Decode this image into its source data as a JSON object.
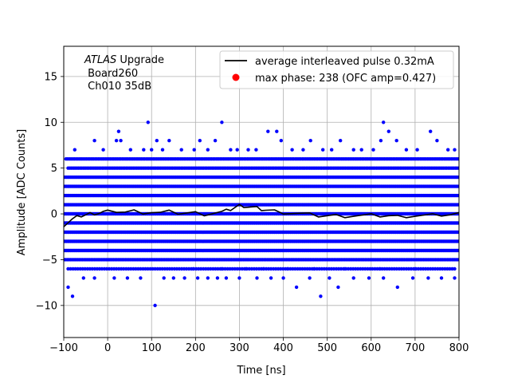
{
  "chart_data": {
    "type": "scatter",
    "annotation": {
      "italic": "ATLAS",
      "line1_rest": " Upgrade",
      "line2": " Board260",
      "line3": " Ch010 35dB"
    },
    "xlabel": "Time [ns]",
    "ylabel": "Amplitude [ADC Counts]",
    "xlim": [
      -100,
      800
    ],
    "ylim": [
      -13.5,
      18.3
    ],
    "xticks": [
      -100,
      0,
      100,
      200,
      300,
      400,
      500,
      600,
      700,
      800
    ],
    "yticks": [
      -10,
      -5,
      0,
      5,
      10,
      15
    ],
    "grid": true,
    "legend": {
      "placement": "top-right",
      "entries": [
        {
          "label": "average interleaved pulse 0.32mA",
          "kind": "line",
          "color": "#000000"
        },
        {
          "label": "max phase: 238 (OFC amp=0.427)",
          "kind": "marker",
          "color": "#ff0000"
        }
      ]
    },
    "series": [
      {
        "kind": "scatter",
        "color": "#0000ff",
        "bands": [
          {
            "y": 6,
            "x": [
              -95,
              800
            ],
            "step": 3.9
          },
          {
            "y": 5,
            "x": [
              -90,
              800
            ],
            "step": 3.9
          },
          {
            "y": 4,
            "x": [
              -100,
              800
            ],
            "step": 3.0
          },
          {
            "y": 3,
            "x": [
              -100,
              800
            ],
            "step": 3.0
          },
          {
            "y": 2,
            "x": [
              -100,
              800
            ],
            "step": 3.0
          },
          {
            "y": 1,
            "x": [
              -100,
              800
            ],
            "step": 3.0
          },
          {
            "y": 0,
            "x": [
              -100,
              800
            ],
            "step": 3.0
          },
          {
            "y": -1,
            "x": [
              -100,
              800
            ],
            "step": 3.0
          },
          {
            "y": -2,
            "x": [
              -100,
              800
            ],
            "step": 3.0
          },
          {
            "y": -3,
            "x": [
              -100,
              800
            ],
            "step": 3.0
          },
          {
            "y": -4,
            "x": [
              -100,
              800
            ],
            "step": 3.0
          },
          {
            "y": -5,
            "x": [
              -100,
              800
            ],
            "step": 3.9
          },
          {
            "y": -6,
            "x": [
              -90,
              795
            ],
            "step": 5.5
          }
        ],
        "points": [
          [
            92,
            10
          ],
          [
            628,
            10
          ],
          [
            -75,
            7
          ],
          [
            -30,
            8
          ],
          [
            -10,
            7
          ],
          [
            20,
            8
          ],
          [
            25,
            9
          ],
          [
            30,
            8
          ],
          [
            52,
            7
          ],
          [
            82,
            7
          ],
          [
            100,
            7
          ],
          [
            112,
            8
          ],
          [
            125,
            7
          ],
          [
            140,
            8
          ],
          [
            168,
            7
          ],
          [
            197,
            7
          ],
          [
            210,
            8
          ],
          [
            228,
            7
          ],
          [
            245,
            8
          ],
          [
            260,
            10
          ],
          [
            280,
            7
          ],
          [
            295,
            7
          ],
          [
            320,
            7
          ],
          [
            338,
            7
          ],
          [
            365,
            9
          ],
          [
            385,
            9
          ],
          [
            395,
            8
          ],
          [
            420,
            7
          ],
          [
            445,
            7
          ],
          [
            462,
            8
          ],
          [
            490,
            7
          ],
          [
            510,
            7
          ],
          [
            530,
            8
          ],
          [
            560,
            7
          ],
          [
            578,
            7
          ],
          [
            605,
            7
          ],
          [
            622,
            8
          ],
          [
            640,
            9
          ],
          [
            658,
            8
          ],
          [
            680,
            7
          ],
          [
            705,
            7
          ],
          [
            735,
            9
          ],
          [
            750,
            8
          ],
          [
            775,
            7
          ],
          [
            790,
            7
          ],
          [
            -90,
            -8
          ],
          [
            -80,
            -9
          ],
          [
            -55,
            -7
          ],
          [
            -30,
            -7
          ],
          [
            15,
            -7
          ],
          [
            45,
            -7
          ],
          [
            75,
            -7
          ],
          [
            108,
            -10
          ],
          [
            128,
            -7
          ],
          [
            150,
            -7
          ],
          [
            175,
            -7
          ],
          [
            205,
            -7
          ],
          [
            228,
            -7
          ],
          [
            250,
            -7
          ],
          [
            270,
            -7
          ],
          [
            300,
            -7
          ],
          [
            340,
            -7
          ],
          [
            372,
            -7
          ],
          [
            400,
            -7
          ],
          [
            430,
            -8
          ],
          [
            460,
            -7
          ],
          [
            485,
            -9
          ],
          [
            505,
            -7
          ],
          [
            525,
            -8
          ],
          [
            560,
            -7
          ],
          [
            595,
            -7
          ],
          [
            628,
            -7
          ],
          [
            660,
            -8
          ],
          [
            695,
            -7
          ],
          [
            730,
            -7
          ],
          [
            760,
            -7
          ],
          [
            790,
            -7
          ],
          [
            195,
            -6
          ],
          [
            260,
            -6
          ],
          [
            315,
            -6
          ],
          [
            355,
            -6
          ],
          [
            410,
            -6
          ],
          [
            470,
            -6
          ],
          [
            540,
            -6
          ],
          [
            620,
            -6
          ],
          [
            700,
            -6
          ]
        ]
      },
      {
        "name": "average interleaved pulse 0.32mA",
        "kind": "line",
        "color": "#000000",
        "x": [
          -100,
          -90,
          -80,
          -70,
          -60,
          -50,
          -40,
          -30,
          -20,
          -10,
          0,
          20,
          40,
          60,
          80,
          100,
          120,
          140,
          160,
          180,
          200,
          220,
          240,
          260,
          270,
          280,
          290,
          300,
          310,
          320,
          330,
          340,
          350,
          360,
          380,
          400,
          420,
          440,
          460,
          480,
          500,
          520,
          540,
          560,
          580,
          600,
          620,
          640,
          660,
          680,
          700,
          720,
          740,
          760,
          780,
          800
        ],
        "y": [
          -1.2,
          -0.9,
          -0.6,
          -0.4,
          -0.2,
          -0.1,
          0.0,
          0.1,
          0.1,
          0.2,
          0.2,
          0.3,
          0.2,
          0.3,
          0.2,
          0.2,
          0.1,
          0.2,
          0.1,
          0.1,
          0.1,
          0.0,
          0.1,
          0.2,
          0.3,
          0.5,
          0.7,
          0.9,
          0.9,
          0.8,
          0.7,
          0.6,
          0.5,
          0.4,
          0.3,
          0.2,
          0.1,
          0.0,
          -0.1,
          -0.2,
          -0.2,
          -0.2,
          -0.2,
          -0.2,
          -0.2,
          -0.2,
          -0.2,
          -0.2,
          -0.3,
          -0.2,
          -0.2,
          -0.2,
          -0.2,
          -0.1,
          -0.1,
          0.0
        ]
      }
    ]
  }
}
